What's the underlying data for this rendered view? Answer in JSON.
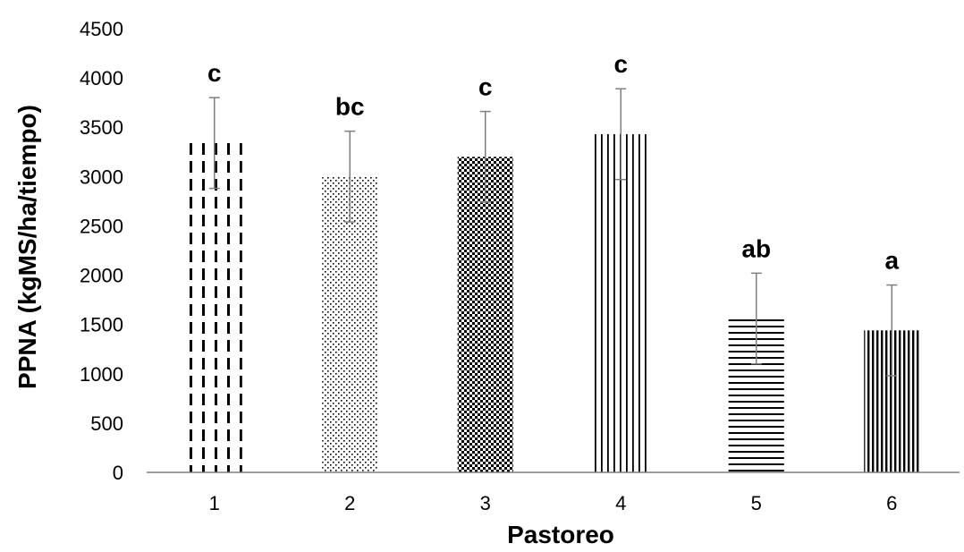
{
  "chart_data": {
    "type": "bar",
    "title": "",
    "xlabel": "Pastoreo",
    "ylabel": "PPNA (kgMS/ha/tiempo)",
    "categories": [
      "1",
      "2",
      "3",
      "4",
      "5",
      "6"
    ],
    "values": [
      3340,
      3000,
      3200,
      3430,
      1560,
      1440
    ],
    "error": [
      460,
      460,
      460,
      460,
      460,
      460
    ],
    "significance_labels": [
      "c",
      "bc",
      "c",
      "c",
      "ab",
      "a"
    ],
    "patterns": [
      "dashed-vertical",
      "fine-dots",
      "dense-dots",
      "vertical-lines",
      "horizontal-lines",
      "dense-vertical-lines"
    ],
    "ylim": [
      0,
      4500
    ],
    "yticks": [
      "0",
      "500",
      "1000",
      "1500",
      "2000",
      "2500",
      "3000",
      "3500",
      "4000",
      "4500"
    ],
    "grid": false,
    "legend": "none",
    "colors": {
      "bar_ink": "#000000",
      "error_bar": "#7f7f7f",
      "axis": "#808080"
    }
  }
}
